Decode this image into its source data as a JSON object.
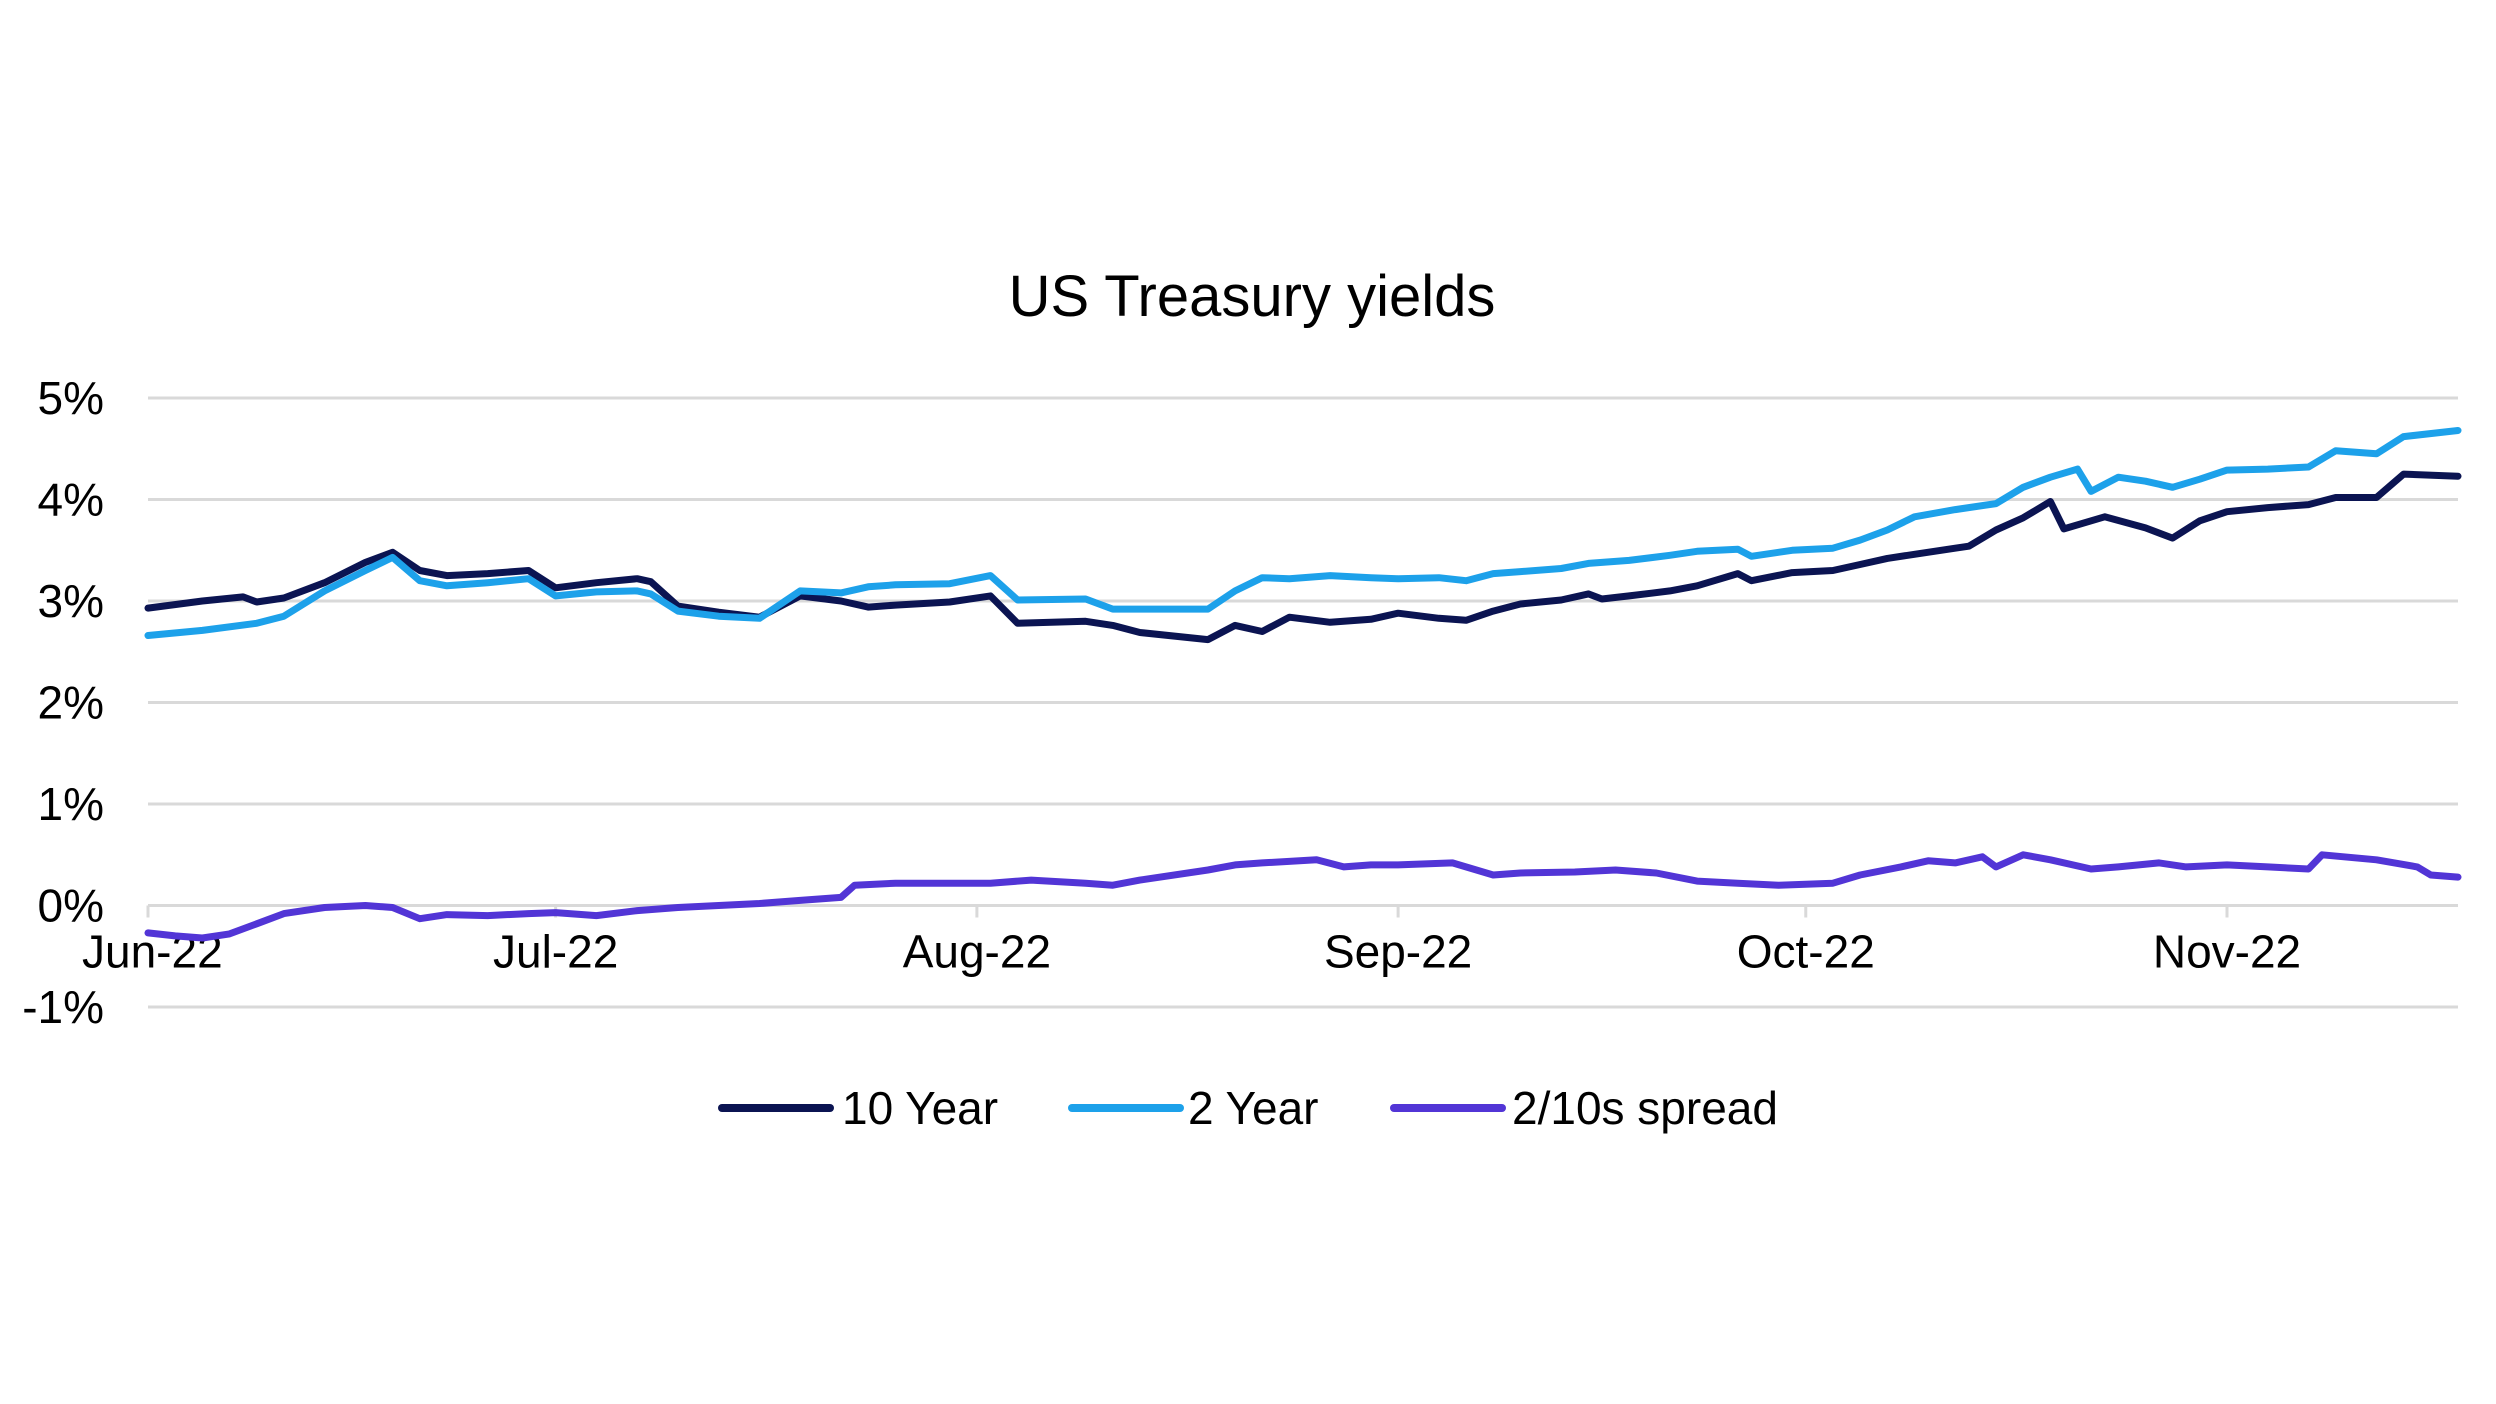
{
  "chart_data": {
    "type": "line",
    "title": "US Treasury yields",
    "xlabel": "",
    "ylabel": "",
    "ylim": [
      -1,
      5
    ],
    "y_ticks": [
      "5%",
      "4%",
      "3%",
      "2%",
      "1%",
      "0%",
      "-1%"
    ],
    "y_tick_values": [
      5,
      4,
      3,
      2,
      1,
      0,
      -1
    ],
    "x_range": [
      "2022-06-01",
      "2022-11-18"
    ],
    "x_ticks": [
      {
        "label": "Jun-22",
        "date": "2022-06-01"
      },
      {
        "label": "Jul-22",
        "date": "2022-07-01"
      },
      {
        "label": "Aug-22",
        "date": "2022-08-01"
      },
      {
        "label": "Sep-22",
        "date": "2022-09-01"
      },
      {
        "label": "Oct-22",
        "date": "2022-10-01"
      },
      {
        "label": "Nov-22",
        "date": "2022-11-01"
      }
    ],
    "grid": true,
    "legend_position": "bottom",
    "series": [
      {
        "name": "10 Year",
        "color": "#0b1452",
        "points": [
          [
            "2022-06-01",
            2.93
          ],
          [
            "2022-06-05",
            3.0
          ],
          [
            "2022-06-08",
            3.04
          ],
          [
            "2022-06-09",
            2.99
          ],
          [
            "2022-06-11",
            3.03
          ],
          [
            "2022-06-14",
            3.18
          ],
          [
            "2022-06-17",
            3.38
          ],
          [
            "2022-06-19",
            3.48
          ],
          [
            "2022-06-21",
            3.3
          ],
          [
            "2022-06-23",
            3.25
          ],
          [
            "2022-06-26",
            3.27
          ],
          [
            "2022-06-29",
            3.3
          ],
          [
            "2022-07-01",
            3.13
          ],
          [
            "2022-07-04",
            3.18
          ],
          [
            "2022-07-07",
            3.22
          ],
          [
            "2022-07-08",
            3.19
          ],
          [
            "2022-07-10",
            2.95
          ],
          [
            "2022-07-13",
            2.89
          ],
          [
            "2022-07-16",
            2.84
          ],
          [
            "2022-07-19",
            3.05
          ],
          [
            "2022-07-22",
            3.0
          ],
          [
            "2022-07-24",
            2.94
          ],
          [
            "2022-07-26",
            2.96
          ],
          [
            "2022-07-30",
            2.99
          ],
          [
            "2022-08-02",
            3.05
          ],
          [
            "2022-08-04",
            2.78
          ],
          [
            "2022-08-09",
            2.8
          ],
          [
            "2022-08-11",
            2.76
          ],
          [
            "2022-08-13",
            2.69
          ],
          [
            "2022-08-18",
            2.62
          ],
          [
            "2022-08-20",
            2.76
          ],
          [
            "2022-08-22",
            2.7
          ],
          [
            "2022-08-24",
            2.84
          ],
          [
            "2022-08-27",
            2.79
          ],
          [
            "2022-08-30",
            2.82
          ],
          [
            "2022-09-01",
            2.88
          ],
          [
            "2022-09-04",
            2.83
          ],
          [
            "2022-09-06",
            2.81
          ],
          [
            "2022-09-08",
            2.9
          ],
          [
            "2022-09-10",
            2.97
          ],
          [
            "2022-09-13",
            3.01
          ],
          [
            "2022-09-15",
            3.07
          ],
          [
            "2022-09-16",
            3.02
          ],
          [
            "2022-09-18",
            3.05
          ],
          [
            "2022-09-21",
            3.1
          ],
          [
            "2022-09-23",
            3.15
          ],
          [
            "2022-09-26",
            3.27
          ],
          [
            "2022-09-27",
            3.2
          ],
          [
            "2022-09-30",
            3.28
          ],
          [
            "2022-10-03",
            3.3
          ],
          [
            "2022-10-05",
            3.36
          ],
          [
            "2022-10-07",
            3.42
          ],
          [
            "2022-10-09",
            3.46
          ],
          [
            "2022-10-12",
            3.52
          ],
          [
            "2022-10-13",
            3.54
          ],
          [
            "2022-10-15",
            3.7
          ],
          [
            "2022-10-17",
            3.82
          ],
          [
            "2022-10-19",
            3.98
          ],
          [
            "2022-10-20",
            3.71
          ],
          [
            "2022-10-23",
            3.83
          ],
          [
            "2022-10-26",
            3.72
          ],
          [
            "2022-10-28",
            3.62
          ],
          [
            "2022-10-30",
            3.79
          ],
          [
            "2022-11-01",
            3.88
          ],
          [
            "2022-11-04",
            3.92
          ],
          [
            "2022-11-07",
            3.95
          ],
          [
            "2022-11-09",
            4.02
          ],
          [
            "2022-11-12",
            4.02
          ],
          [
            "2022-11-14",
            4.25
          ],
          [
            "2022-11-18",
            4.23
          ]
        ]
      },
      {
        "name": "2 Year",
        "color": "#1da1ea",
        "points": [
          [
            "2022-06-01",
            2.66
          ],
          [
            "2022-06-05",
            2.71
          ],
          [
            "2022-06-09",
            2.78
          ],
          [
            "2022-06-11",
            2.85
          ],
          [
            "2022-06-14",
            3.1
          ],
          [
            "2022-06-17",
            3.3
          ],
          [
            "2022-06-19",
            3.43
          ],
          [
            "2022-06-21",
            3.2
          ],
          [
            "2022-06-23",
            3.15
          ],
          [
            "2022-06-26",
            3.18
          ],
          [
            "2022-06-29",
            3.22
          ],
          [
            "2022-07-01",
            3.05
          ],
          [
            "2022-07-04",
            3.09
          ],
          [
            "2022-07-07",
            3.1
          ],
          [
            "2022-07-08",
            3.07
          ],
          [
            "2022-07-10",
            2.9
          ],
          [
            "2022-07-13",
            2.85
          ],
          [
            "2022-07-16",
            2.83
          ],
          [
            "2022-07-19",
            3.1
          ],
          [
            "2022-07-22",
            3.08
          ],
          [
            "2022-07-24",
            3.14
          ],
          [
            "2022-07-26",
            3.16
          ],
          [
            "2022-07-30",
            3.17
          ],
          [
            "2022-08-02",
            3.25
          ],
          [
            "2022-08-04",
            3.01
          ],
          [
            "2022-08-09",
            3.02
          ],
          [
            "2022-08-11",
            2.92
          ],
          [
            "2022-08-18",
            2.92
          ],
          [
            "2022-08-20",
            3.1
          ],
          [
            "2022-08-22",
            3.23
          ],
          [
            "2022-08-24",
            3.22
          ],
          [
            "2022-08-27",
            3.25
          ],
          [
            "2022-08-30",
            3.23
          ],
          [
            "2022-09-01",
            3.22
          ],
          [
            "2022-09-04",
            3.23
          ],
          [
            "2022-09-06",
            3.2
          ],
          [
            "2022-09-08",
            3.27
          ],
          [
            "2022-09-10",
            3.29
          ],
          [
            "2022-09-13",
            3.32
          ],
          [
            "2022-09-15",
            3.37
          ],
          [
            "2022-09-18",
            3.4
          ],
          [
            "2022-09-21",
            3.45
          ],
          [
            "2022-09-23",
            3.49
          ],
          [
            "2022-09-26",
            3.51
          ],
          [
            "2022-09-27",
            3.44
          ],
          [
            "2022-09-30",
            3.5
          ],
          [
            "2022-10-03",
            3.52
          ],
          [
            "2022-10-05",
            3.6
          ],
          [
            "2022-10-07",
            3.7
          ],
          [
            "2022-10-09",
            3.83
          ],
          [
            "2022-10-12",
            3.9
          ],
          [
            "2022-10-15",
            3.96
          ],
          [
            "2022-10-17",
            4.12
          ],
          [
            "2022-10-19",
            4.22
          ],
          [
            "2022-10-21",
            4.3
          ],
          [
            "2022-10-22",
            4.08
          ],
          [
            "2022-10-24",
            4.22
          ],
          [
            "2022-10-26",
            4.18
          ],
          [
            "2022-10-28",
            4.12
          ],
          [
            "2022-10-30",
            4.2
          ],
          [
            "2022-11-01",
            4.29
          ],
          [
            "2022-11-04",
            4.3
          ],
          [
            "2022-11-07",
            4.32
          ],
          [
            "2022-11-09",
            4.48
          ],
          [
            "2022-11-12",
            4.45
          ],
          [
            "2022-11-14",
            4.62
          ],
          [
            "2022-11-18",
            4.68
          ]
        ]
      },
      {
        "name": "2/10s spread",
        "color": "#5235d6",
        "points": [
          [
            "2022-06-01",
            -0.27
          ],
          [
            "2022-06-03",
            -0.3
          ],
          [
            "2022-06-05",
            -0.32
          ],
          [
            "2022-06-07",
            -0.28
          ],
          [
            "2022-06-09",
            -0.18
          ],
          [
            "2022-06-11",
            -0.08
          ],
          [
            "2022-06-14",
            -0.02
          ],
          [
            "2022-06-17",
            0.0
          ],
          [
            "2022-06-19",
            -0.02
          ],
          [
            "2022-06-21",
            -0.13
          ],
          [
            "2022-06-23",
            -0.09
          ],
          [
            "2022-06-26",
            -0.1
          ],
          [
            "2022-06-29",
            -0.08
          ],
          [
            "2022-07-01",
            -0.07
          ],
          [
            "2022-07-04",
            -0.1
          ],
          [
            "2022-07-07",
            -0.05
          ],
          [
            "2022-07-10",
            -0.02
          ],
          [
            "2022-07-13",
            0.0
          ],
          [
            "2022-07-16",
            0.02
          ],
          [
            "2022-07-19",
            0.05
          ],
          [
            "2022-07-22",
            0.08
          ],
          [
            "2022-07-23",
            0.2
          ],
          [
            "2022-07-26",
            0.22
          ],
          [
            "2022-07-30",
            0.22
          ],
          [
            "2022-08-02",
            0.22
          ],
          [
            "2022-08-05",
            0.25
          ],
          [
            "2022-08-09",
            0.22
          ],
          [
            "2022-08-11",
            0.2
          ],
          [
            "2022-08-13",
            0.25
          ],
          [
            "2022-08-18",
            0.35
          ],
          [
            "2022-08-20",
            0.4
          ],
          [
            "2022-08-22",
            0.42
          ],
          [
            "2022-08-26",
            0.45
          ],
          [
            "2022-08-28",
            0.38
          ],
          [
            "2022-08-30",
            0.4
          ],
          [
            "2022-09-01",
            0.4
          ],
          [
            "2022-09-05",
            0.42
          ],
          [
            "2022-09-08",
            0.3
          ],
          [
            "2022-09-10",
            0.32
          ],
          [
            "2022-09-14",
            0.33
          ],
          [
            "2022-09-17",
            0.35
          ],
          [
            "2022-09-20",
            0.32
          ],
          [
            "2022-09-23",
            0.24
          ],
          [
            "2022-09-26",
            0.22
          ],
          [
            "2022-09-29",
            0.2
          ],
          [
            "2022-10-03",
            0.22
          ],
          [
            "2022-10-05",
            0.3
          ],
          [
            "2022-10-08",
            0.38
          ],
          [
            "2022-10-10",
            0.44
          ],
          [
            "2022-10-12",
            0.42
          ],
          [
            "2022-10-14",
            0.48
          ],
          [
            "2022-10-15",
            0.38
          ],
          [
            "2022-10-17",
            0.5
          ],
          [
            "2022-10-19",
            0.45
          ],
          [
            "2022-10-22",
            0.36
          ],
          [
            "2022-10-24",
            0.38
          ],
          [
            "2022-10-27",
            0.42
          ],
          [
            "2022-10-29",
            0.38
          ],
          [
            "2022-11-01",
            0.4
          ],
          [
            "2022-11-04",
            0.38
          ],
          [
            "2022-11-07",
            0.36
          ],
          [
            "2022-11-08",
            0.5
          ],
          [
            "2022-11-12",
            0.45
          ],
          [
            "2022-11-15",
            0.38
          ],
          [
            "2022-11-16",
            0.3
          ],
          [
            "2022-11-18",
            0.28
          ]
        ]
      }
    ]
  }
}
